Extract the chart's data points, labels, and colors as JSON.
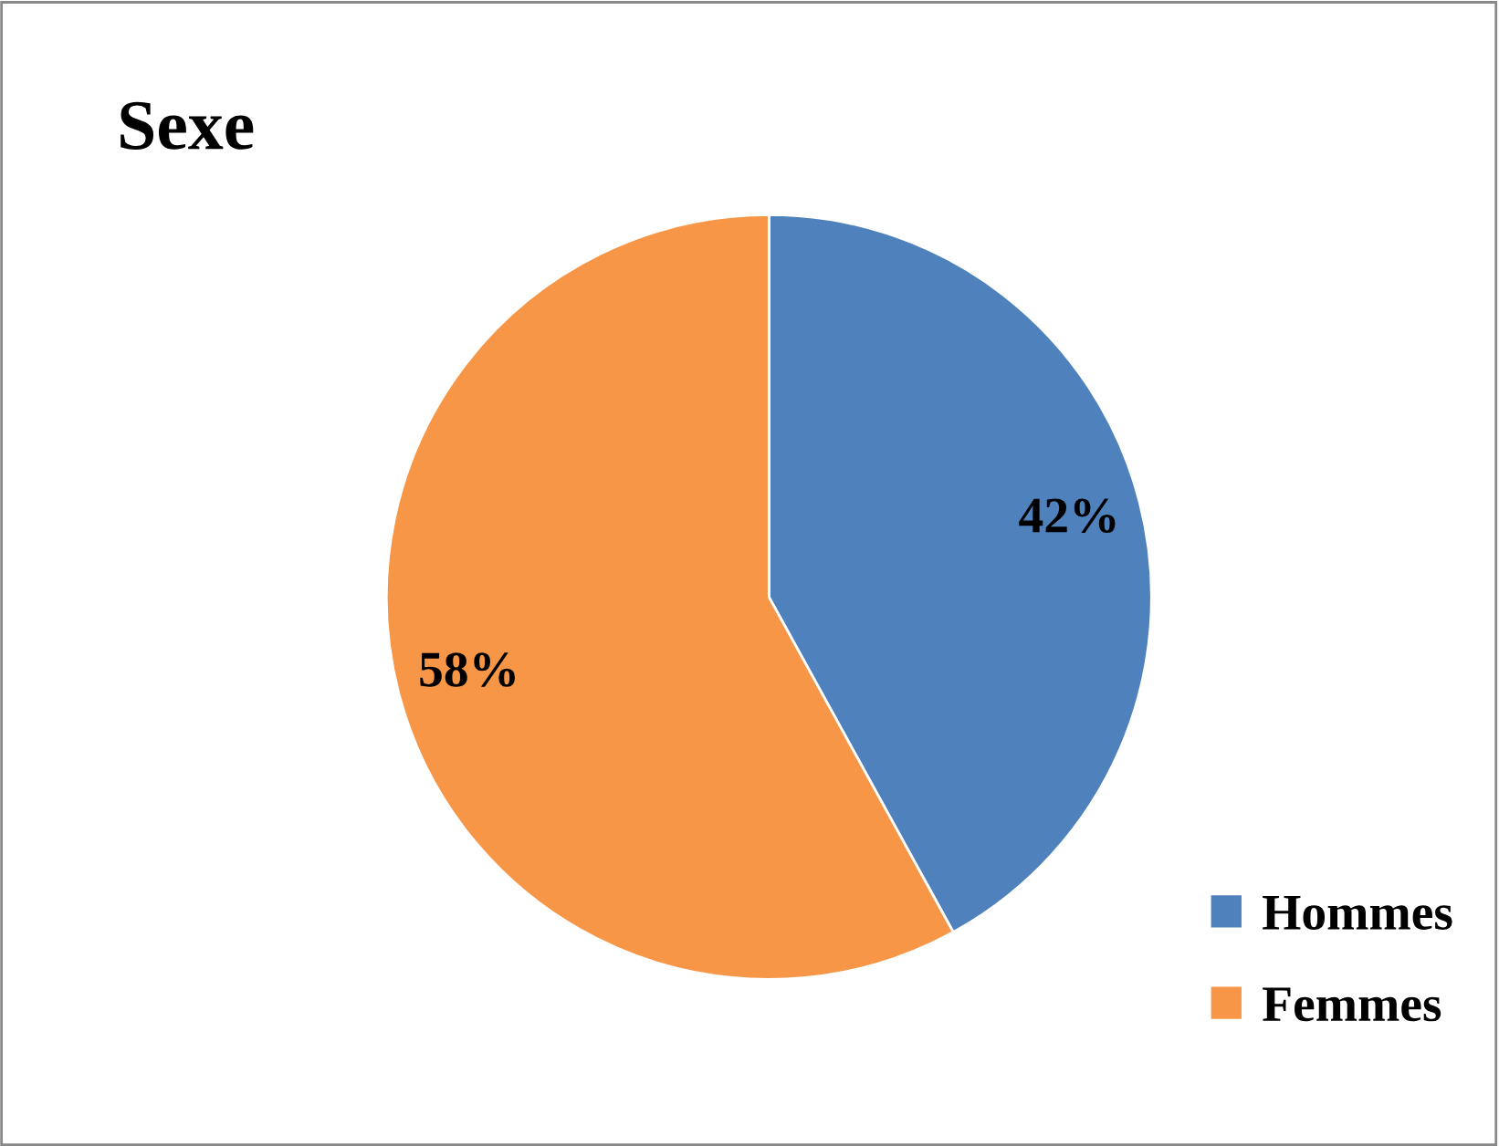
{
  "chart_data": {
    "type": "pie",
    "title": "Sexe",
    "categories": [
      "Hommes",
      "Femmes"
    ],
    "values": [
      42,
      58
    ],
    "colors": [
      "#4f81bd",
      "#f79646"
    ],
    "value_labels": [
      "42%",
      "58%"
    ],
    "legend": "bottom right"
  }
}
